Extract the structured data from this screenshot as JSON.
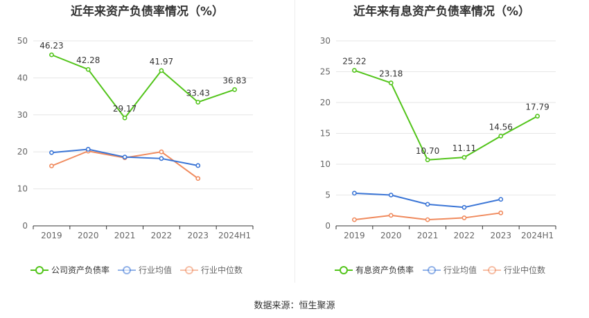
{
  "source_text": "数据来源：恒生聚源",
  "chart_data": [
    {
      "type": "line",
      "title": "近年来资产负债率情况（%）",
      "categories": [
        "2019",
        "2020",
        "2021",
        "2022",
        "2023",
        "2024H1"
      ],
      "ylim": [
        0,
        50
      ],
      "yticks": [
        "0",
        "10",
        "20",
        "30",
        "40",
        "50"
      ],
      "grid": true,
      "legend_position": "bottom",
      "series": [
        {
          "name": "公司资产负债率",
          "color": "#52c41a",
          "values": [
            46.23,
            42.28,
            29.17,
            41.97,
            33.43,
            36.83
          ],
          "labels": [
            "46.23",
            "42.28",
            "29.17",
            "41.97",
            "33.43",
            "36.83"
          ]
        },
        {
          "name": "行业均值",
          "color": "#3a75d6",
          "values": [
            19.8,
            20.7,
            18.6,
            18.2,
            16.3,
            null
          ]
        },
        {
          "name": "行业中位数",
          "color": "#f08a5d",
          "values": [
            16.2,
            20.2,
            18.4,
            20.0,
            12.8,
            null
          ]
        }
      ]
    },
    {
      "type": "line",
      "title": "近年来有息资产负债率情况（%）",
      "categories": [
        "2019",
        "2020",
        "2021",
        "2022",
        "2023",
        "2024H1"
      ],
      "ylim": [
        0,
        30
      ],
      "yticks": [
        "0",
        "5",
        "10",
        "15",
        "20",
        "25",
        "30"
      ],
      "grid": true,
      "legend_position": "bottom",
      "series": [
        {
          "name": "有息资产负债率",
          "color": "#52c41a",
          "values": [
            25.22,
            23.18,
            10.7,
            11.11,
            14.56,
            17.79
          ],
          "labels": [
            "25.22",
            "23.18",
            "10.70",
            "11.11",
            "14.56",
            "17.79"
          ]
        },
        {
          "name": "行业均值",
          "color": "#3a75d6",
          "values": [
            5.3,
            5.0,
            3.5,
            3.0,
            4.3,
            null
          ]
        },
        {
          "name": "行业中位数",
          "color": "#f08a5d",
          "values": [
            1.0,
            1.7,
            1.0,
            1.3,
            2.1,
            null
          ]
        }
      ]
    }
  ]
}
